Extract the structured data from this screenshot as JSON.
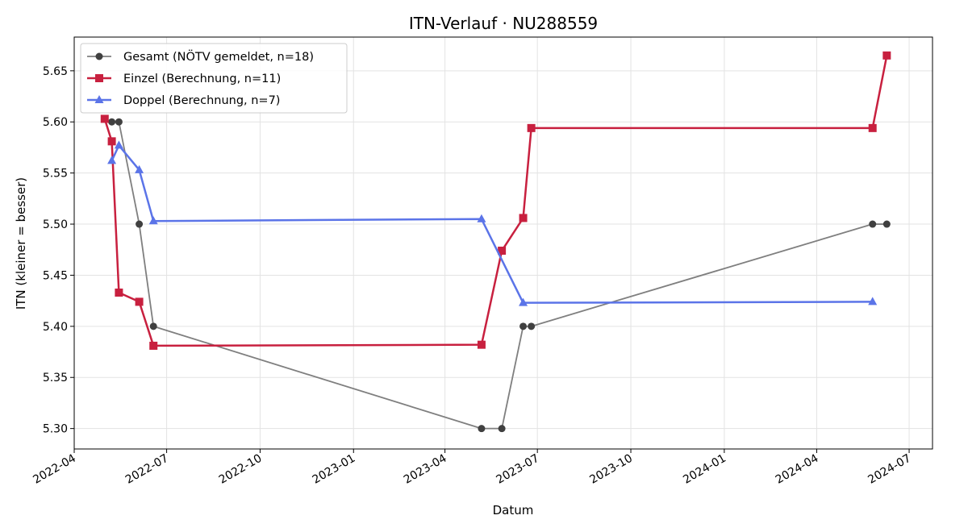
{
  "chart_data": {
    "type": "line",
    "title": "ITN-Verlauf · NU288559",
    "xlabel": "Datum",
    "ylabel": "ITN  (kleiner = besser)",
    "x_is_date": true,
    "xlim": [
      "2022-04-01",
      "2024-07-24"
    ],
    "ylim": [
      5.28,
      5.683
    ],
    "grid": true,
    "legend_position": "upper-left",
    "x_ticks": [
      "2022-04",
      "2022-07",
      "2022-10",
      "2023-01",
      "2023-04",
      "2023-07",
      "2023-10",
      "2024-01",
      "2024-04",
      "2024-07"
    ],
    "y_ticks": [
      "5.30",
      "5.35",
      "5.40",
      "5.45",
      "5.50",
      "5.55",
      "5.60",
      "5.65"
    ],
    "series": [
      {
        "name": "Gesamt (NÖTV gemeldet, n=18)",
        "color": "#7f7f7f",
        "marker_color": "#404040",
        "marker": "circle",
        "x": [
          "2022-05-08",
          "2022-05-15",
          "2022-06-04",
          "2022-06-18",
          "2023-05-07",
          "2023-05-27",
          "2023-06-17",
          "2023-06-25",
          "2024-05-26",
          "2024-06-09"
        ],
        "y": [
          5.6,
          5.6,
          5.5,
          5.4,
          5.3,
          5.3,
          5.4,
          5.4,
          5.5,
          5.5
        ]
      },
      {
        "name": "Einzel (Berechnung, n=11)",
        "color": "#c8203f",
        "marker_color": "#c8203f",
        "marker": "square",
        "x": [
          "2022-05-01",
          "2022-05-08",
          "2022-05-15",
          "2022-06-04",
          "2022-06-18",
          "2023-05-07",
          "2023-05-27",
          "2023-06-17",
          "2023-06-25",
          "2024-05-26",
          "2024-06-09"
        ],
        "y": [
          5.603,
          5.581,
          5.433,
          5.424,
          5.381,
          5.382,
          5.474,
          5.506,
          5.594,
          5.594,
          5.665
        ]
      },
      {
        "name": "Doppel (Berechnung, n=7)",
        "color": "#5b74e8",
        "marker_color": "#5b74e8",
        "marker": "triangle",
        "x": [
          "2022-05-08",
          "2022-05-15",
          "2022-06-04",
          "2022-06-18",
          "2023-05-07",
          "2023-06-17",
          "2024-05-26"
        ],
        "y": [
          5.562,
          5.577,
          5.553,
          5.503,
          5.505,
          5.423,
          5.424
        ]
      }
    ]
  }
}
